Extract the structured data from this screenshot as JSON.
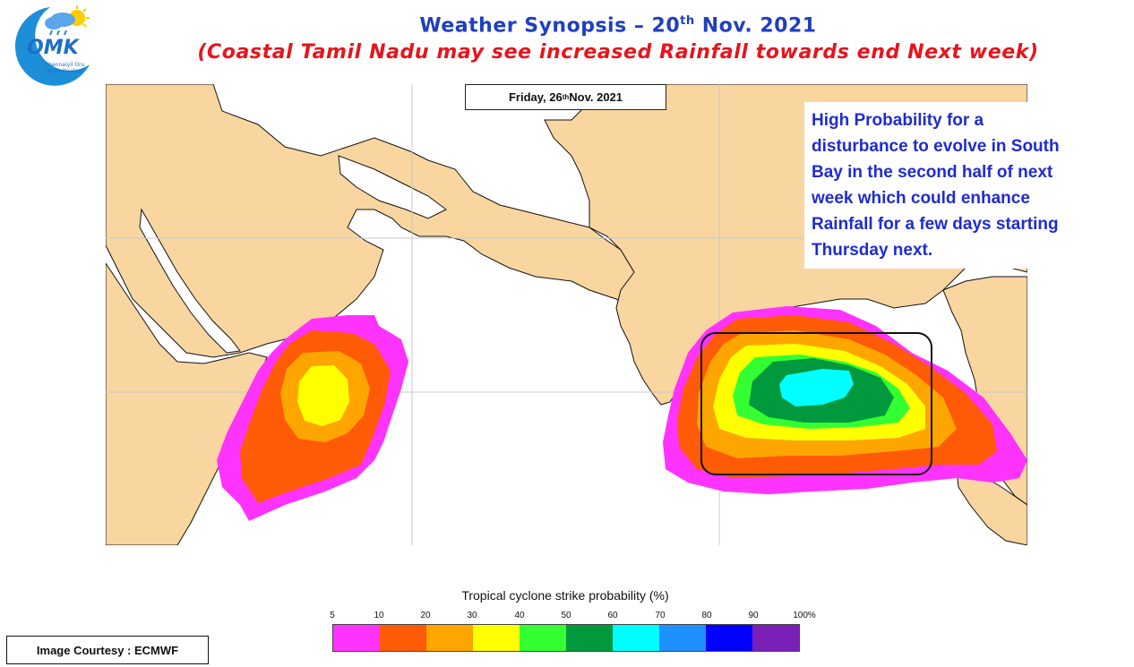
{
  "logo": {
    "text": "OMK",
    "tagline_1": "Chennaiyil Oru",
    "tagline_2": "Mazhaikaalam"
  },
  "header": {
    "title_prefix": "Weather Synopsis – 20",
    "title_sup": "th",
    "title_suffix": " Nov. 2021",
    "subtitle": "(Coastal Tamil Nadu may see increased Rainfall towards end Next week)"
  },
  "map": {
    "date_prefix": "Friday, 26",
    "date_sup": "th",
    "date_suffix": " Nov. 2021",
    "note_lines": [
      "High Probability for a",
      "disturbance to evolve in South",
      "Bay in the second half of next",
      "week which could enhance",
      "Rainfall for a few days starting",
      "Thursday next."
    ],
    "colors": {
      "land": "#f9d6a0",
      "sea": "#ffffff",
      "grid": "#c8c8c8",
      "highlight_box": "#111111"
    }
  },
  "legend": {
    "title": "Tropical cyclone strike probability (%)",
    "ticks": [
      "5",
      "10",
      "20",
      "30",
      "40",
      "50",
      "60",
      "70",
      "80",
      "90",
      "100%"
    ],
    "colors": [
      "#ff33ff",
      "#ff5a05",
      "#ffa500",
      "#ffff00",
      "#33ff33",
      "#00993d",
      "#00ffff",
      "#1e90ff",
      "#0000ff",
      "#7a1fb8"
    ]
  },
  "footer": {
    "courtesy": "Image Courtesy : ECMWF"
  }
}
